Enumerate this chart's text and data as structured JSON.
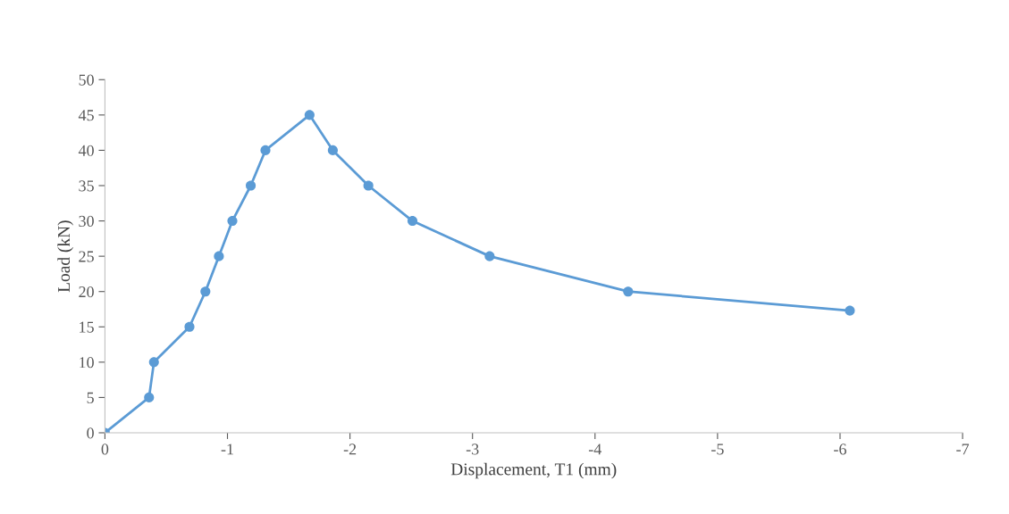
{
  "chart_data": {
    "type": "line",
    "xlabel": "Displacement, T1 (mm)",
    "ylabel": "Load (kN)",
    "series": [
      {
        "color": "#5b9bd5",
        "x": [
          0,
          -0.36,
          -0.4,
          -0.69,
          -0.82,
          -0.93,
          -1.04,
          -1.19,
          -1.31,
          -1.67,
          -1.86,
          -2.15,
          -2.51,
          -3.14,
          -4.27,
          -6.08
        ],
        "values": [
          0,
          5,
          10,
          15,
          20,
          25,
          30,
          35,
          40,
          45,
          40,
          35,
          30,
          25,
          20,
          17.3
        ]
      }
    ],
    "xlim": [
      0,
      -7
    ],
    "xticks": [
      0,
      -1,
      -2,
      -3,
      -4,
      -5,
      -6,
      -7
    ],
    "ylim": [
      0,
      50
    ],
    "yticks": [
      0,
      5,
      10,
      15,
      20,
      25,
      30,
      35,
      40,
      45,
      50
    ],
    "grid": false,
    "legend": false,
    "marker": "circle",
    "line_style": "solid"
  }
}
